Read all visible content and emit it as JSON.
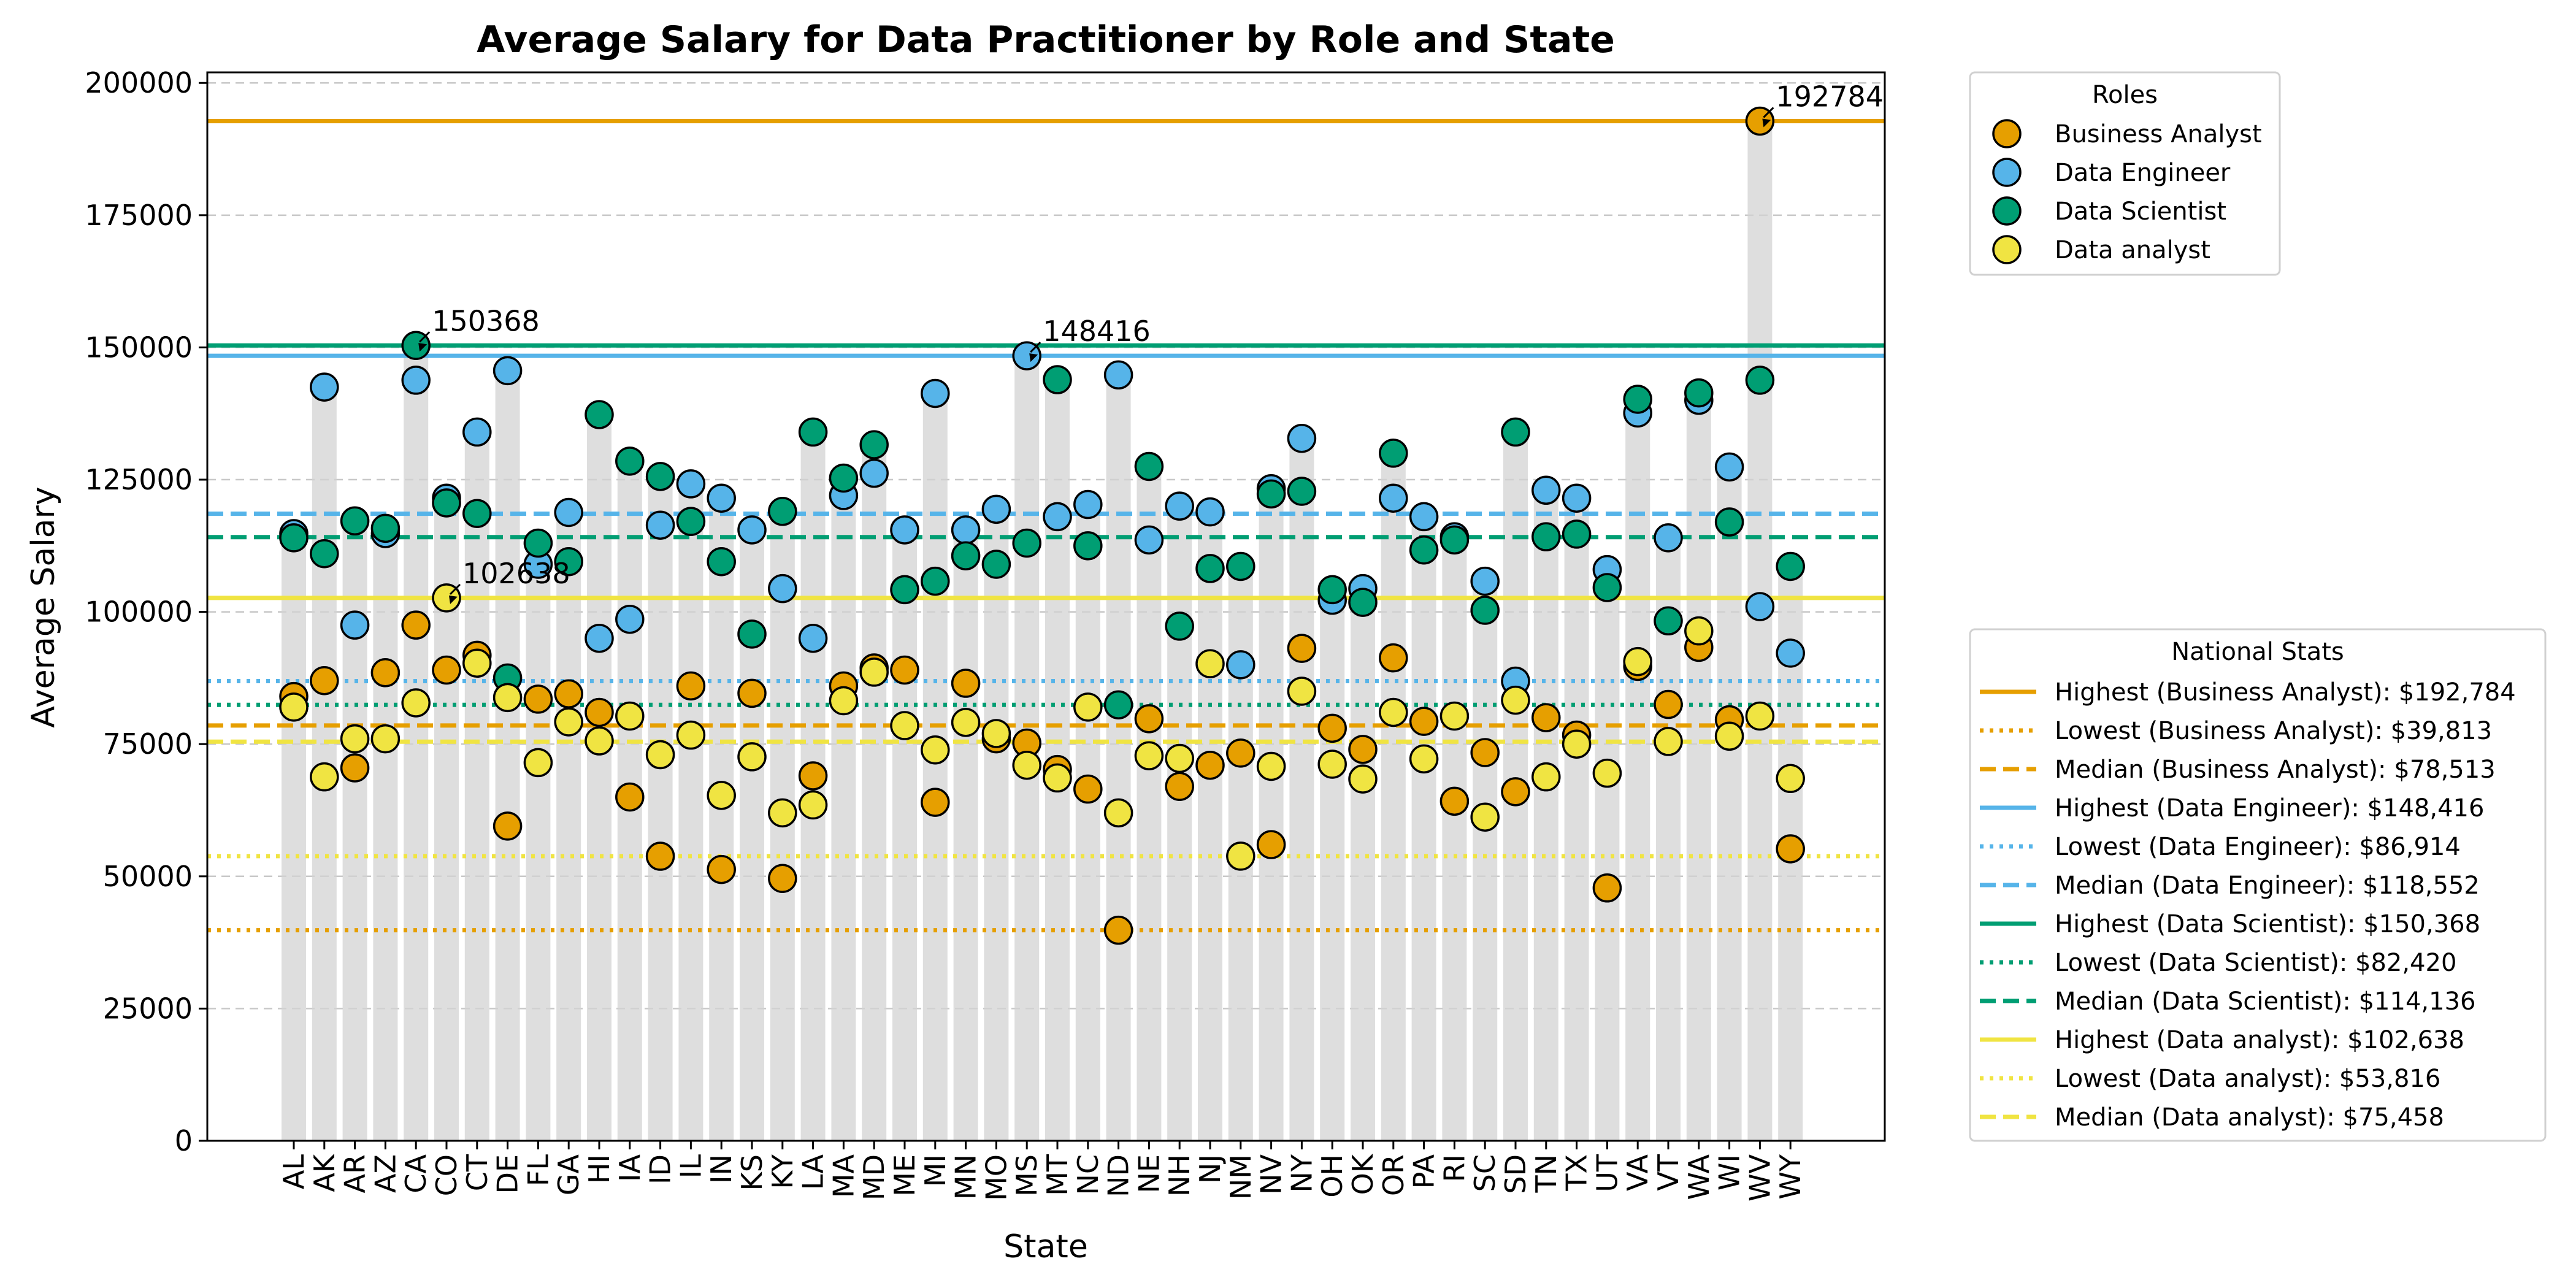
{
  "chart_data": {
    "type": "scatter",
    "title": "Average Salary for Data Practitioner by Role and State",
    "xlabel": "State",
    "ylabel": "Average Salary",
    "ylim": [
      0,
      202000
    ],
    "yticks": [
      0,
      25000,
      50000,
      75000,
      100000,
      125000,
      150000,
      175000,
      200000
    ],
    "grid": "horizontal dashed",
    "categories": [
      "AL",
      "AK",
      "AR",
      "AZ",
      "CA",
      "CO",
      "CT",
      "DE",
      "FL",
      "GA",
      "HI",
      "IA",
      "ID",
      "IL",
      "IN",
      "KS",
      "KY",
      "LA",
      "MA",
      "MD",
      "ME",
      "MI",
      "MN",
      "MO",
      "MS",
      "MT",
      "NC",
      "ND",
      "NE",
      "NH",
      "NJ",
      "NM",
      "NV",
      "NY",
      "OH",
      "OK",
      "OR",
      "PA",
      "RI",
      "SC",
      "SD",
      "TN",
      "TX",
      "UT",
      "VA",
      "VT",
      "WA",
      "WI",
      "WV",
      "WY"
    ],
    "bars": {
      "description": "grey background bar per state at the highest role salary",
      "color": "#d3d3d3"
    },
    "series": [
      {
        "name": "Business Analyst",
        "color": "#E69F00",
        "values": [
          84000,
          87000,
          70500,
          88500,
          97500,
          89000,
          91800,
          59500,
          83500,
          84500,
          81000,
          65000,
          53800,
          86000,
          51300,
          84600,
          49600,
          69000,
          86000,
          89400,
          89000,
          64000,
          86500,
          76000,
          75200,
          70200,
          66500,
          39813,
          79800,
          67000,
          71000,
          73300,
          56000,
          93100,
          78000,
          74000,
          91300,
          79300,
          64200,
          73400,
          66000,
          80000,
          76700,
          47800,
          89700,
          82500,
          93300,
          79600,
          192784,
          55200
        ]
      },
      {
        "name": "Data Engineer",
        "color": "#56B4E9",
        "values": [
          114800,
          142500,
          97500,
          114800,
          143800,
          121500,
          134000,
          145600,
          109000,
          118800,
          95000,
          98600,
          116400,
          124200,
          121500,
          115500,
          104400,
          95000,
          122000,
          126200,
          115500,
          141300,
          115500,
          119400,
          148416,
          118000,
          120300,
          144800,
          113600,
          120000,
          118900,
          90000,
          123300,
          132800,
          102200,
          104400,
          121500,
          118000,
          114200,
          105800,
          86914,
          123000,
          121500,
          108000,
          137600,
          114000,
          140000,
          127400,
          101000,
          92200
        ]
      },
      {
        "name": "Data Scientist",
        "color": "#009E73",
        "values": [
          114000,
          111000,
          117200,
          115800,
          150368,
          120600,
          118600,
          87500,
          113000,
          109500,
          137300,
          128500,
          125600,
          117100,
          109500,
          95800,
          119000,
          134000,
          125300,
          131600,
          104200,
          105800,
          110600,
          109000,
          113000,
          143900,
          112500,
          82420,
          127500,
          97300,
          108200,
          108600,
          122300,
          122800,
          104200,
          101800,
          130000,
          111700,
          113600,
          100300,
          134000,
          114200,
          114700,
          104600,
          140200,
          98300,
          141400,
          117000,
          143800,
          108600
        ]
      },
      {
        "name": "Data analyst",
        "color": "#F0E442",
        "values": [
          82000,
          68800,
          76000,
          76000,
          82800,
          102638,
          90300,
          83800,
          71500,
          79200,
          75600,
          80300,
          73000,
          76700,
          65300,
          72600,
          62000,
          63500,
          83200,
          88600,
          78500,
          73900,
          79100,
          77000,
          71000,
          68600,
          82000,
          62000,
          72800,
          72300,
          90200,
          53816,
          70800,
          85000,
          71200,
          68400,
          81000,
          72200,
          80300,
          61200,
          83300,
          68800,
          75000,
          69500,
          90600,
          75500,
          96400,
          76500,
          80300,
          68500
        ]
      }
    ],
    "annotations": [
      {
        "label": "192784",
        "category": "WV",
        "value": 192784
      },
      {
        "label": "150368",
        "category": "CA",
        "value": 150368
      },
      {
        "label": "148416",
        "category": "MS",
        "value": 148416
      },
      {
        "label": "102638",
        "category": "CO",
        "value": 102638
      }
    ],
    "reference_lines": [
      {
        "label": "Highest (Business Analyst): $192,784",
        "value": 192784,
        "color": "#E69F00",
        "style": "solid"
      },
      {
        "label": "Lowest (Business Analyst): $39,813",
        "value": 39813,
        "color": "#E69F00",
        "style": "dotted"
      },
      {
        "label": "Median (Business Analyst): $78,513",
        "value": 78513,
        "color": "#E69F00",
        "style": "dashed"
      },
      {
        "label": "Highest (Data Engineer): $148,416",
        "value": 148416,
        "color": "#56B4E9",
        "style": "solid"
      },
      {
        "label": "Lowest (Data Engineer): $86,914",
        "value": 86914,
        "color": "#56B4E9",
        "style": "dotted"
      },
      {
        "label": "Median (Data Engineer): $118,552",
        "value": 118552,
        "color": "#56B4E9",
        "style": "dashed"
      },
      {
        "label": "Highest (Data Scientist): $150,368",
        "value": 150368,
        "color": "#009E73",
        "style": "solid"
      },
      {
        "label": "Lowest (Data Scientist): $82,420",
        "value": 82420,
        "color": "#009E73",
        "style": "dotted"
      },
      {
        "label": "Median (Data Scientist): $114,136",
        "value": 114136,
        "color": "#009E73",
        "style": "dashed"
      },
      {
        "label": "Highest (Data analyst): $102,638",
        "value": 102638,
        "color": "#F0E442",
        "style": "solid"
      },
      {
        "label": "Lowest (Data analyst): $53,816",
        "value": 53816,
        "color": "#F0E442",
        "style": "dotted"
      },
      {
        "label": "Median (Data analyst): $75,458",
        "value": 75458,
        "color": "#F0E442",
        "style": "dashed"
      }
    ],
    "legends": [
      {
        "title": "Roles",
        "placement": "outside upper right"
      },
      {
        "title": "National Stats",
        "placement": "outside lower right"
      }
    ]
  }
}
